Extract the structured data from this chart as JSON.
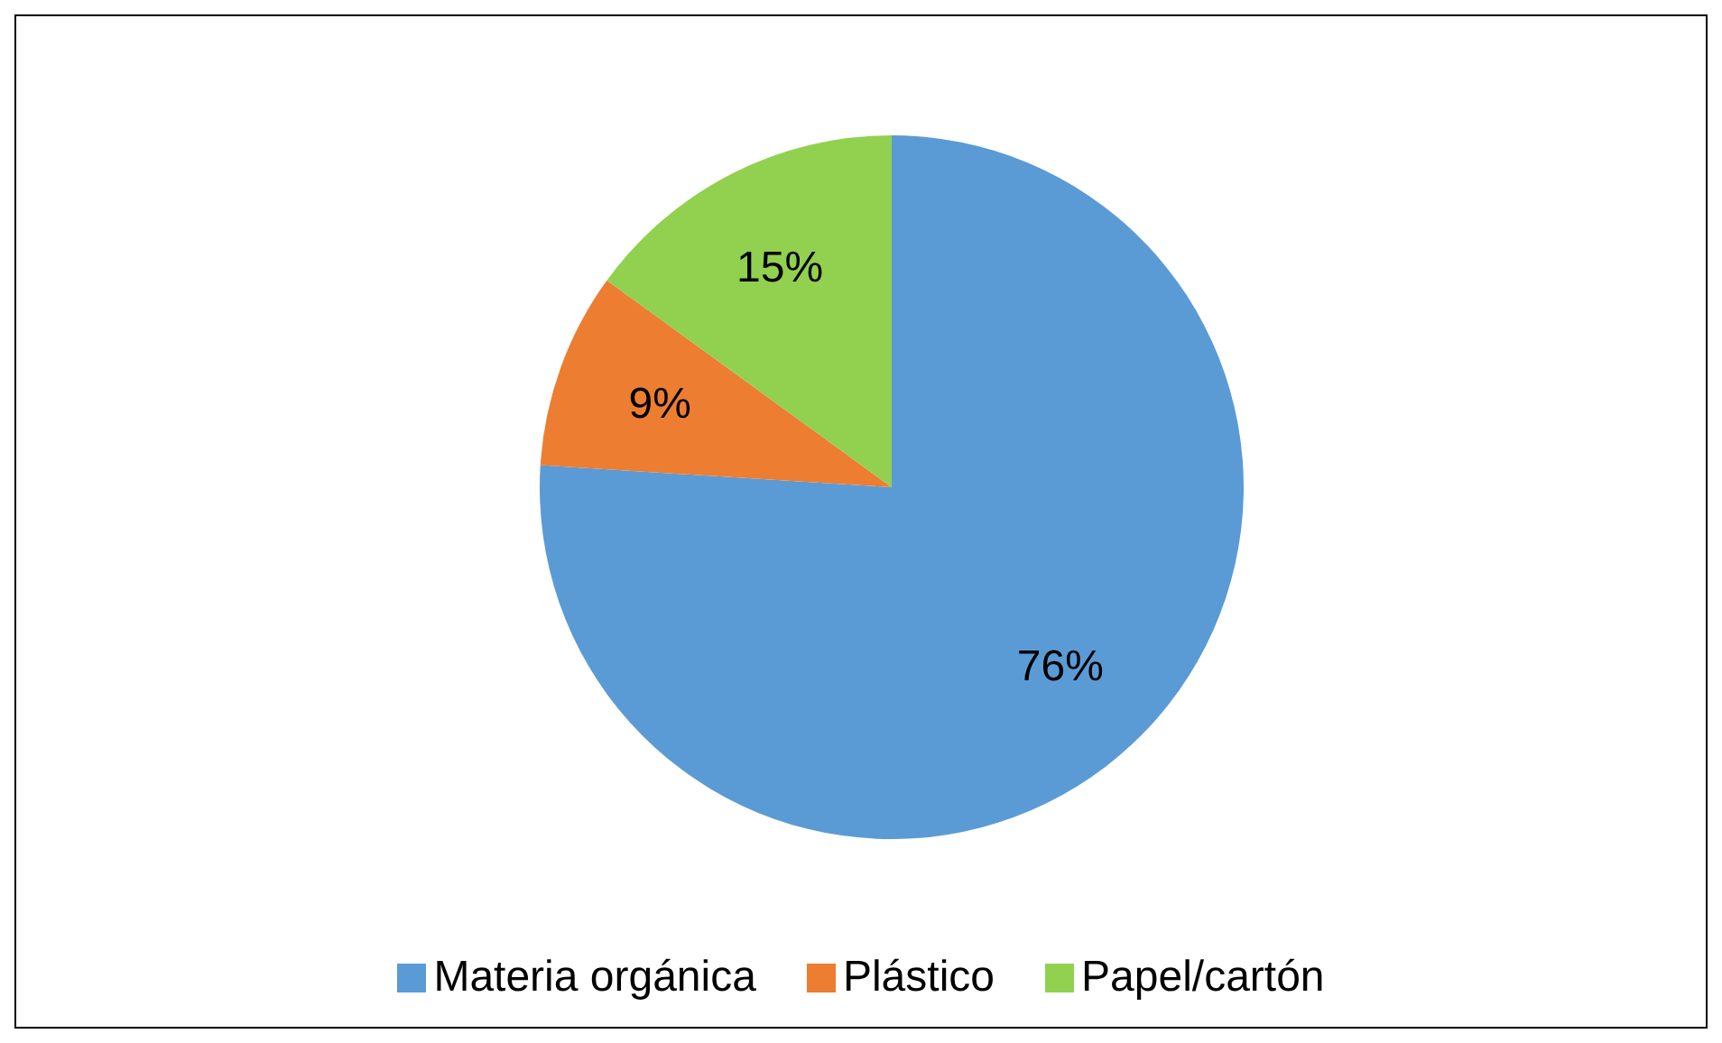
{
  "chart_data": {
    "type": "pie",
    "categories": [
      "Materia orgánica",
      "Plástico",
      "Papel/cartón"
    ],
    "values": [
      76,
      9,
      15
    ],
    "colors": [
      "#5b9bd5",
      "#ed7d31",
      "#92d050"
    ],
    "value_labels": [
      "76%",
      "9%",
      "15%"
    ],
    "legend": "bottom"
  }
}
